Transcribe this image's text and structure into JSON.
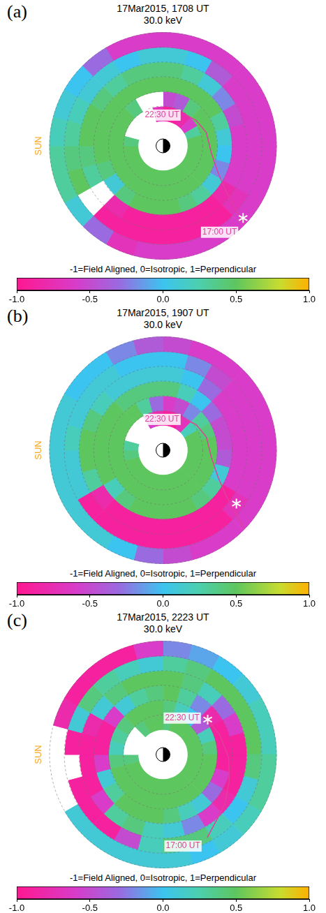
{
  "chart_data": [
    {
      "type": "polar_heatmap",
      "letter": "(a)",
      "title": "17Mar2015, 1708 UT",
      "subtitle": "30.0 keV",
      "sun_label": "SUN",
      "cells": [
        [
          -0.9,
          -0.9,
          -0.8,
          -0.6,
          0.3,
          0.5,
          0.5,
          0.5,
          0.5,
          0.5,
          0.5,
          0.5,
          0.5,
          0.5,
          0.5,
          0.5,
          0.5,
          0.5,
          0.4,
          null,
          null,
          null,
          null,
          -0.7
        ],
        [
          -0.5,
          -0.4,
          0.4,
          0.5,
          0.5,
          0.5,
          0.5,
          0.5,
          0.5,
          0.5,
          0.5,
          0.5,
          0.5,
          0.5,
          0.5,
          0.5,
          0.5,
          0.5,
          0.5,
          0.5,
          0.5,
          0.4,
          null,
          null
        ],
        [
          0.5,
          0.5,
          0.5,
          0.5,
          0.3,
          0.1,
          0,
          -0.2,
          0.1,
          0.3,
          0.4,
          0.5,
          0.5,
          0.5,
          0.4,
          0.1,
          0.4,
          0.5,
          0.5,
          0.5,
          0.5,
          0.5,
          0.5,
          0.5
        ],
        [
          0.4,
          0.3,
          0.1,
          -0.2,
          -0.5,
          -0.6,
          -0.6,
          -0.6,
          -0.8,
          -0.9,
          -0.9,
          -0.9,
          -0.9,
          -0.9,
          -0.8,
          null,
          0.3,
          0.4,
          0.5,
          0.5,
          0.4,
          0.3,
          0.4,
          0.4
        ],
        [
          0.1,
          0,
          -0.4,
          -0.6,
          -0.6,
          -0.6,
          -0.6,
          -0.6,
          -0.7,
          -0.9,
          -0.9,
          -0.9,
          -0.9,
          -0.9,
          -0.9,
          null,
          0.5,
          0.4,
          0.3,
          0.2,
          0.1,
          0.1,
          0,
          0.1
        ],
        [
          -0.6,
          -0.6,
          -0.6,
          -0.6,
          -0.6,
          -0.6,
          -0.6,
          -0.6,
          -0.6,
          -0.6,
          -0.6,
          -0.6,
          -0.6,
          -0.7,
          -0.3,
          0.1,
          0.3,
          0.3,
          0.2,
          0.1,
          0,
          -0.3,
          -0.6,
          -0.6
        ]
      ],
      "track": [
        {
          "r": 0.99,
          "theta": 134
        },
        {
          "r": 0.85,
          "theta": 131
        },
        {
          "r": 0.69,
          "theta": 126
        },
        {
          "r": 0.54,
          "theta": 116
        },
        {
          "r": 0.43,
          "theta": 98
        },
        {
          "r": 0.4,
          "theta": 73
        },
        {
          "r": 0.37,
          "theta": 53
        },
        {
          "r": 0.34,
          "theta": 37
        }
      ],
      "track_labels": {
        "start": "17:00 UT",
        "end": "22:30 UT"
      },
      "star": {
        "r": 0.95,
        "theta": 132
      },
      "colorbar": {
        "label": "-1=Field Aligned, 0=Isotropic, 1=Perpendicular",
        "range": [
          -1,
          1
        ],
        "ticks": [
          {
            "value": -1,
            "label": "-1.0"
          },
          {
            "value": -0.5,
            "label": "-0.5"
          },
          {
            "value": 0,
            "label": "0.0"
          },
          {
            "value": 0.5,
            "label": "0.5"
          },
          {
            "value": 1,
            "label": "1.0"
          }
        ]
      }
    },
    {
      "type": "polar_heatmap",
      "letter": "(b)",
      "title": "17Mar2015, 1907 UT",
      "subtitle": "30.0 keV",
      "sun_label": "SUN",
      "cells": [
        [
          -0.9,
          -0.9,
          -0.7,
          0.2,
          0.5,
          0.5,
          0.5,
          0.5,
          0.5,
          0.5,
          0.5,
          0.5,
          0.5,
          0.5,
          0.5,
          0.5,
          0.5,
          0.4,
          0.3,
          null,
          null,
          null,
          -0.6,
          -0.8
        ],
        [
          -0.6,
          -0.5,
          -0.2,
          0.3,
          0.4,
          0.5,
          0.5,
          0.5,
          0.5,
          0.5,
          0.5,
          0.5,
          0.5,
          0.5,
          0.5,
          0.5,
          0.5,
          0.5,
          0.5,
          0.5,
          0.5,
          0.5,
          0.3,
          -0.3
        ],
        [
          0.4,
          0.2,
          0,
          -0.3,
          -0.5,
          -0.5,
          -0.4,
          0.1,
          0.3,
          0.4,
          0.5,
          0.5,
          0.5,
          0.5,
          0.4,
          0.2,
          0.5,
          0.5,
          0.5,
          0.5,
          0.5,
          0.4,
          0.4,
          0.4
        ],
        [
          0.1,
          0,
          -0.3,
          -0.6,
          -0.6,
          -0.6,
          -0.6,
          -0.6,
          -0.9,
          -0.9,
          -0.9,
          -0.9,
          -0.9,
          -0.9,
          -0.9,
          -0.8,
          0.3,
          0.5,
          0.5,
          0.4,
          0.2,
          0.1,
          0.1,
          0.1
        ],
        [
          0,
          -0.2,
          -0.5,
          -0.6,
          -0.6,
          -0.6,
          -0.6,
          -0.6,
          -0.7,
          -0.9,
          -0.9,
          -0.9,
          -0.9,
          -0.9,
          -0.9,
          -0.9,
          0.1,
          0.1,
          0.2,
          0.1,
          0.1,
          0.1,
          0,
          0
        ],
        [
          -0.5,
          -0.6,
          -0.6,
          -0.6,
          -0.6,
          -0.6,
          -0.6,
          -0.6,
          -0.6,
          -0.6,
          -0.6,
          -0.5,
          -0.3,
          0,
          0.1,
          0.1,
          0.1,
          0.1,
          0.1,
          0.1,
          0,
          0,
          -0.2,
          -0.4
        ]
      ],
      "track": [
        {
          "r": 0.99,
          "theta": 134
        },
        {
          "r": 0.85,
          "theta": 131
        },
        {
          "r": 0.69,
          "theta": 126
        },
        {
          "r": 0.54,
          "theta": 116
        },
        {
          "r": 0.43,
          "theta": 98
        },
        {
          "r": 0.4,
          "theta": 73
        },
        {
          "r": 0.37,
          "theta": 53
        },
        {
          "r": 0.34,
          "theta": 37
        }
      ],
      "track_labels": {
        "end": "22:30 UT"
      },
      "star": {
        "r": 0.8,
        "theta": 126
      },
      "colorbar": {
        "label": "-1=Field Aligned, 0=Isotropic, 1=Perpendicular",
        "range": [
          -1,
          1
        ],
        "ticks": [
          {
            "value": -1,
            "label": "-1.0"
          },
          {
            "value": -0.5,
            "label": "-0.5"
          },
          {
            "value": 0,
            "label": "0.0"
          },
          {
            "value": 0.5,
            "label": "0.5"
          },
          {
            "value": 1,
            "label": "1.0"
          }
        ]
      }
    },
    {
      "type": "polar_heatmap",
      "letter": "(c)",
      "title": "17Mar2015, 2223 UT",
      "subtitle": "30.0 keV",
      "sun_label": "SUN",
      "cells": [
        [
          0.4,
          0.5,
          0.5,
          0.5,
          0.5,
          0.5,
          0.5,
          0.5,
          0.5,
          0.5,
          0.5,
          0.5,
          0.5,
          0.5,
          0.5,
          0.5,
          0.5,
          0.4,
          null,
          null,
          null,
          0.4,
          0.5,
          0.5
        ],
        [
          0.4,
          0.2,
          0,
          -0.4,
          0.2,
          0.4,
          0.5,
          0.5,
          0.5,
          0.5,
          0.5,
          0.5,
          0.5,
          0.5,
          0.5,
          0.5,
          0.5,
          0.4,
          0.2,
          0.3,
          0.4,
          0.5,
          0.5,
          0.5
        ],
        [
          0.5,
          0.3,
          -0.2,
          -0.8,
          -0.9,
          -0.9,
          -0.9,
          -0.6,
          -0.3,
          0.1,
          0.2,
          0.4,
          0.5,
          0.5,
          0.5,
          0.3,
          0.1,
          -0.6,
          -0.9,
          -0.9,
          -0.6,
          0.1,
          0.3,
          0.4
        ],
        [
          0.5,
          0.4,
          0.2,
          -0.3,
          -0.6,
          -0.9,
          -0.9,
          -0.9,
          -0.8,
          -0.6,
          -0.2,
          0.1,
          0.2,
          0.4,
          0.3,
          -0.6,
          -0.9,
          -0.9,
          -0.9,
          -0.8,
          0.1,
          0.4,
          0.5,
          0.5
        ],
        [
          0.3,
          0.4,
          0.5,
          0.5,
          0.5,
          0.5,
          0.4,
          0.1,
          0,
          0.2,
          0.4,
          0.4,
          0.2,
          -0.5,
          -0.9,
          -0.9,
          -0.9,
          null,
          -0.9,
          0.1,
          0.4,
          0.3,
          0.2,
          0.1
        ],
        [
          -0.2,
          -0.1,
          0,
          0.1,
          0.2,
          0.2,
          0.3,
          0.3,
          0.2,
          0.1,
          0,
          0.1,
          0.1,
          0.1,
          0.1,
          0.1,
          null,
          null,
          null,
          -0.8,
          -0.9,
          -0.9,
          -0.9,
          -0.6
        ]
      ],
      "track": [
        {
          "r": 0.83,
          "theta": 152
        },
        {
          "r": 0.76,
          "theta": 143
        },
        {
          "r": 0.7,
          "theta": 129
        },
        {
          "r": 0.63,
          "theta": 112
        },
        {
          "r": 0.58,
          "theta": 93
        },
        {
          "r": 0.53,
          "theta": 71
        },
        {
          "r": 0.5,
          "theta": 50
        }
      ],
      "track_labels": {
        "start": "17:00 UT",
        "end": "22:30 UT"
      },
      "star": {
        "r": 0.5,
        "theta": 52
      },
      "colorbar": {
        "label": "-1=Field Aligned, 0=Isotropic, 1=Perpendicular",
        "range": [
          -1,
          1
        ],
        "ticks": [
          {
            "value": -1,
            "label": "-1.0"
          },
          {
            "value": -0.5,
            "label": "-0.5"
          },
          {
            "value": 0,
            "label": "0.0"
          },
          {
            "value": 0.5,
            "label": "0.5"
          },
          {
            "value": 1,
            "label": "1.0"
          }
        ]
      }
    }
  ]
}
